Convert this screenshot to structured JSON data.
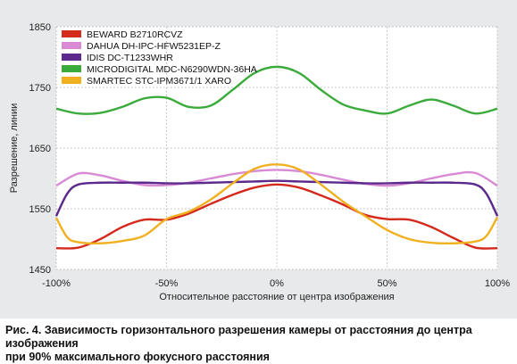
{
  "caption": {
    "line1": "Рис. 4. Зависимость горизонтального разрешения камеры от расстояния до центра изображения",
    "line2": "при 90% максимального фокусного расстояния"
  },
  "chart_data": {
    "type": "line",
    "xlabel": "Относительное расстояние от центра изображения",
    "ylabel": "Разрешение, линии",
    "xlim": [
      -100,
      100
    ],
    "ylim": [
      1450,
      1850
    ],
    "x_ticks": [
      {
        "value": -100,
        "label": "-100%"
      },
      {
        "value": -50,
        "label": "-50%"
      },
      {
        "value": 0,
        "label": "0%"
      },
      {
        "value": 50,
        "label": "50%"
      },
      {
        "value": 100,
        "label": "100%"
      }
    ],
    "y_ticks": [
      {
        "value": 1450,
        "label": "1450"
      },
      {
        "value": 1550,
        "label": "1550"
      },
      {
        "value": 1650,
        "label": "1650"
      },
      {
        "value": 1750,
        "label": "1750"
      },
      {
        "value": 1850,
        "label": "1850"
      }
    ],
    "grid": true,
    "legend_position": "top-left",
    "series": [
      {
        "name": "BEWARD B2710RCVZ",
        "color": "#d42a1c",
        "x": [
          -100,
          -90,
          -80,
          -70,
          -60,
          -50,
          -40,
          -30,
          -20,
          -10,
          0,
          10,
          20,
          30,
          40,
          50,
          60,
          70,
          80,
          90,
          100
        ],
        "y": [
          1485,
          1486,
          1500,
          1520,
          1532,
          1532,
          1542,
          1558,
          1573,
          1585,
          1590,
          1585,
          1572,
          1557,
          1540,
          1533,
          1532,
          1520,
          1502,
          1486,
          1485
        ]
      },
      {
        "name": "DAHUA DH-IPC-HFW5231EP-Z",
        "color": "#d98ad4",
        "x": [
          -100,
          -90,
          -80,
          -70,
          -60,
          -50,
          -40,
          -30,
          -20,
          -10,
          0,
          10,
          20,
          30,
          40,
          50,
          60,
          70,
          80,
          90,
          100
        ],
        "y": [
          1588,
          1608,
          1605,
          1596,
          1589,
          1589,
          1593,
          1600,
          1607,
          1612,
          1614,
          1612,
          1606,
          1598,
          1591,
          1588,
          1592,
          1600,
          1607,
          1609,
          1588
        ]
      },
      {
        "name": "IDIS DC-T1233WHR",
        "color": "#5b2a8c",
        "x": [
          -100,
          -95,
          -90,
          -80,
          -70,
          -60,
          -50,
          -40,
          -30,
          -20,
          -10,
          0,
          10,
          20,
          30,
          40,
          50,
          60,
          70,
          80,
          90,
          95,
          100
        ],
        "y": [
          1538,
          1575,
          1590,
          1593,
          1593,
          1593,
          1592,
          1592,
          1593,
          1594,
          1595,
          1596,
          1595,
          1594,
          1593,
          1592,
          1592,
          1593,
          1593,
          1593,
          1590,
          1575,
          1538
        ]
      },
      {
        "name": "MICRODIGITAL MDC-N6290WDN-36HA",
        "color": "#3aab3a",
        "x": [
          -100,
          -90,
          -80,
          -70,
          -60,
          -50,
          -40,
          -30,
          -20,
          -10,
          0,
          10,
          20,
          30,
          40,
          50,
          60,
          70,
          80,
          90,
          100
        ],
        "y": [
          1715,
          1707,
          1708,
          1718,
          1732,
          1733,
          1718,
          1720,
          1746,
          1774,
          1784,
          1774,
          1746,
          1722,
          1712,
          1707,
          1720,
          1730,
          1720,
          1707,
          1715
        ]
      },
      {
        "name": "SMARTEC STC-IPM3671/1 XARO",
        "color": "#f0b020",
        "x": [
          -100,
          -95,
          -90,
          -80,
          -70,
          -60,
          -50,
          -40,
          -30,
          -20,
          -10,
          0,
          10,
          20,
          30,
          40,
          50,
          60,
          70,
          80,
          90,
          95,
          100
        ],
        "y": [
          1535,
          1503,
          1495,
          1493,
          1497,
          1506,
          1533,
          1545,
          1565,
          1592,
          1616,
          1623,
          1615,
          1590,
          1562,
          1538,
          1515,
          1500,
          1494,
          1493,
          1496,
          1505,
          1536
        ]
      }
    ]
  }
}
